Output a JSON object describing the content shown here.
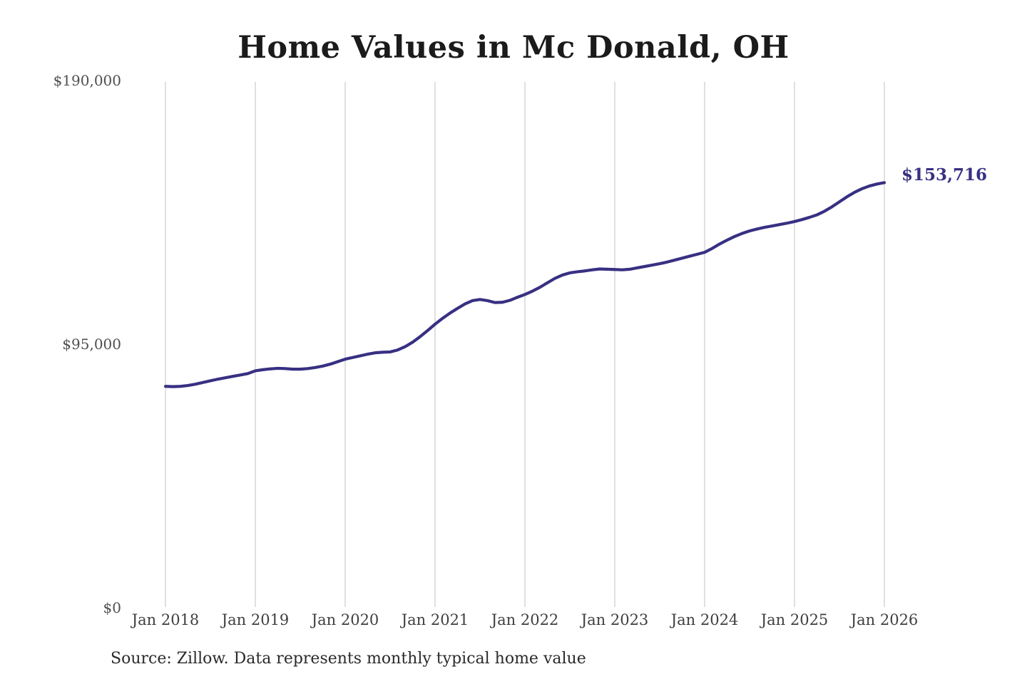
{
  "chart": {
    "title": "Home Values in Mc Donald, OH",
    "end_label": "$153,716",
    "source": "Source: Zillow. Data represents monthly typical home value"
  },
  "chart_data": {
    "type": "line",
    "title": "Home Values in Mc Donald, OH",
    "xlabel": "",
    "ylabel": "",
    "ylim": [
      0,
      190000
    ],
    "grid": "vertical-only",
    "legend": "none",
    "x_ticks": [
      "Jan 2018",
      "Jan 2019",
      "Jan 2020",
      "Jan 2021",
      "Jan 2022",
      "Jan 2023",
      "Jan 2024",
      "Jan 2025",
      "Jan 2026"
    ],
    "y_ticks": [
      {
        "value": 0,
        "label": "$0"
      },
      {
        "value": 95000,
        "label": "$95,000"
      },
      {
        "value": 190000,
        "label": "$190,000"
      }
    ],
    "annotation": {
      "text": "$153,716",
      "color": "#373082"
    },
    "source": "Source: Zillow. Data represents monthly typical home value",
    "series": [
      {
        "name": "Monthly typical home value",
        "color": "#373082",
        "interval": "monthly",
        "start": "2018-01",
        "end": "2026-01",
        "final_value": 153716,
        "values": [
          80300,
          80200,
          80300,
          80600,
          81100,
          81700,
          82300,
          82900,
          83400,
          83900,
          84400,
          84900,
          85900,
          86300,
          86600,
          86800,
          86700,
          86500,
          86500,
          86700,
          87100,
          87600,
          88300,
          89200,
          90100,
          90700,
          91300,
          91900,
          92400,
          92600,
          92700,
          93400,
          94600,
          96200,
          98200,
          100400,
          102700,
          104800,
          106700,
          108400,
          110000,
          111200,
          111600,
          111200,
          110500,
          110600,
          111300,
          112400,
          113400,
          114600,
          116000,
          117600,
          119200,
          120400,
          121200,
          121600,
          121900,
          122300,
          122600,
          122500,
          122400,
          122300,
          122500,
          123000,
          123500,
          124000,
          124500,
          125100,
          125800,
          126500,
          127200,
          127900,
          128600,
          130000,
          131600,
          133000,
          134300,
          135400,
          136300,
          137000,
          137600,
          138100,
          138600,
          139100,
          139700,
          140400,
          141200,
          142100,
          143400,
          145000,
          146800,
          148600,
          150200,
          151500,
          152500,
          153200,
          153716
        ]
      }
    ]
  }
}
